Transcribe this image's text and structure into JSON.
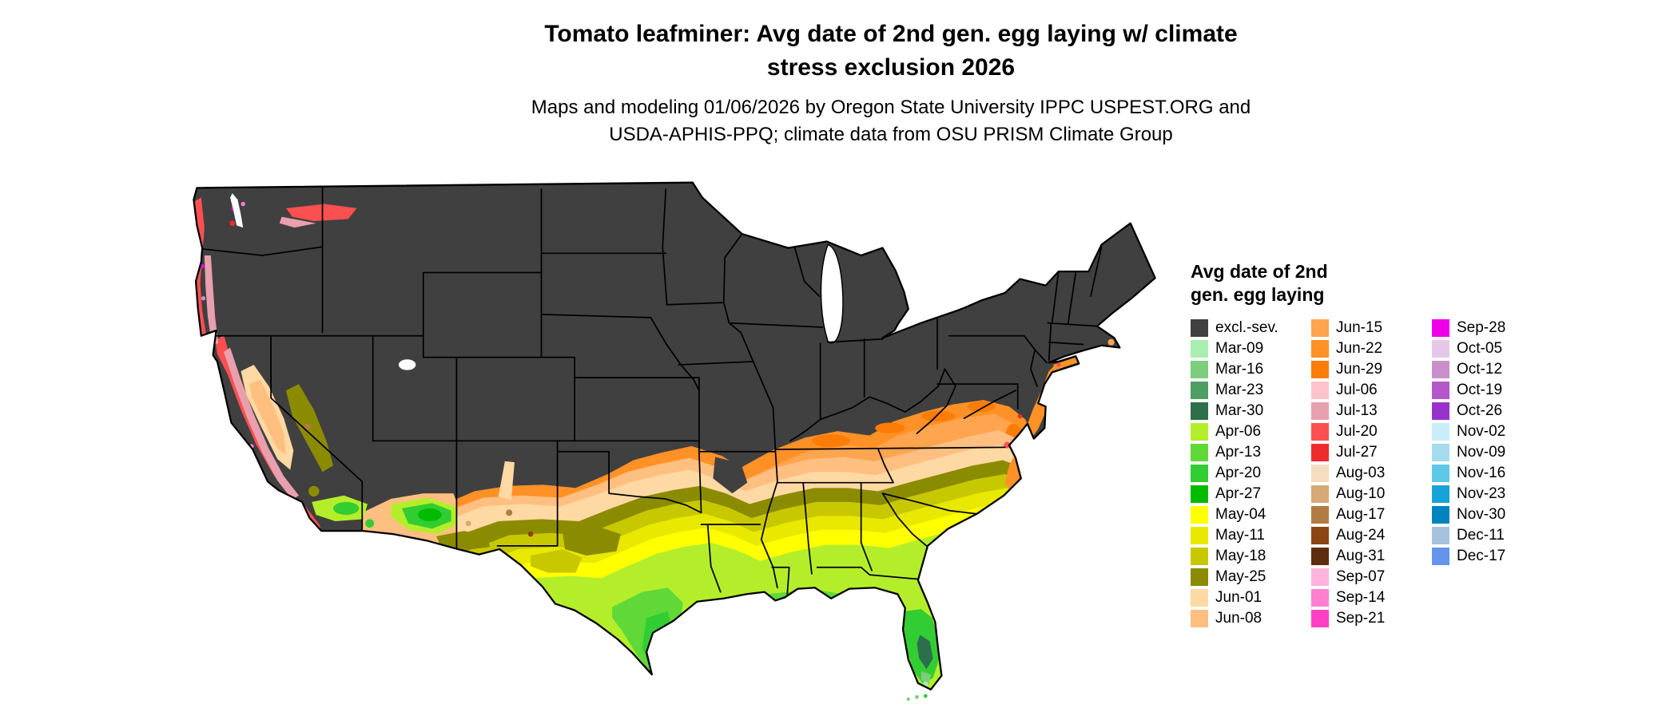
{
  "header": {
    "title_line1": "Tomato leafminer: Avg date of 2nd gen. egg laying w/ climate",
    "title_line2": "stress exclusion 2026",
    "subtitle_line1": "Maps and modeling 01/06/2026 by Oregon State University IPPC USPEST.ORG and",
    "subtitle_line2": "USDA-APHIS-PPQ; climate data from OSU PRISM Climate Group"
  },
  "legend": {
    "title_line1": "Avg date of 2nd",
    "title_line2": "gen. egg laying",
    "columns": [
      [
        {
          "label": "excl.-sev.",
          "key": "excl-sev"
        },
        {
          "label": "Mar-09",
          "key": "Mar-09"
        },
        {
          "label": "Mar-16",
          "key": "Mar-16"
        },
        {
          "label": "Mar-23",
          "key": "Mar-23"
        },
        {
          "label": "Mar-30",
          "key": "Mar-30"
        },
        {
          "label": "Apr-06",
          "key": "Apr-06"
        },
        {
          "label": "Apr-13",
          "key": "Apr-13"
        },
        {
          "label": "Apr-20",
          "key": "Apr-20"
        },
        {
          "label": "Apr-27",
          "key": "Apr-27"
        },
        {
          "label": "May-04",
          "key": "May-04"
        },
        {
          "label": "May-11",
          "key": "May-11"
        },
        {
          "label": "May-18",
          "key": "May-18"
        },
        {
          "label": "May-25",
          "key": "May-25"
        },
        {
          "label": "Jun-01",
          "key": "Jun-01"
        },
        {
          "label": "Jun-08",
          "key": "Jun-08"
        }
      ],
      [
        {
          "label": "Jun-15",
          "key": "Jun-15"
        },
        {
          "label": "Jun-22",
          "key": "Jun-22"
        },
        {
          "label": "Jun-29",
          "key": "Jun-29"
        },
        {
          "label": "Jul-06",
          "key": "Jul-06"
        },
        {
          "label": "Jul-13",
          "key": "Jul-13"
        },
        {
          "label": "Jul-20",
          "key": "Jul-20"
        },
        {
          "label": "Jul-27",
          "key": "Jul-27"
        },
        {
          "label": "Aug-03",
          "key": "Aug-03"
        },
        {
          "label": "Aug-10",
          "key": "Aug-10"
        },
        {
          "label": "Aug-17",
          "key": "Aug-17"
        },
        {
          "label": "Aug-24",
          "key": "Aug-24"
        },
        {
          "label": "Aug-31",
          "key": "Aug-31"
        },
        {
          "label": "Sep-07",
          "key": "Sep-07"
        },
        {
          "label": "Sep-14",
          "key": "Sep-14"
        },
        {
          "label": "Sep-21",
          "key": "Sep-21"
        }
      ],
      [
        {
          "label": "Sep-28",
          "key": "Sep-28"
        },
        {
          "label": "Oct-05",
          "key": "Oct-05"
        },
        {
          "label": "Oct-12",
          "key": "Oct-12"
        },
        {
          "label": "Oct-19",
          "key": "Oct-19"
        },
        {
          "label": "Oct-26",
          "key": "Oct-26"
        },
        {
          "label": "Nov-02",
          "key": "Nov-02"
        },
        {
          "label": "Nov-09",
          "key": "Nov-09"
        },
        {
          "label": "Nov-16",
          "key": "Nov-16"
        },
        {
          "label": "Nov-23",
          "key": "Nov-23"
        },
        {
          "label": "Nov-30",
          "key": "Nov-30"
        },
        {
          "label": "Dec-11",
          "key": "Dec-11"
        },
        {
          "label": "Dec-17",
          "key": "Dec-17"
        }
      ]
    ]
  },
  "palette": {
    "excl-sev": "#404040",
    "Mar-09": "#a8eeb0",
    "Mar-16": "#7ccd7c",
    "Mar-23": "#4f9e63",
    "Mar-30": "#2e6f4b",
    "Apr-06": "#b4ee2a",
    "Apr-13": "#5fd838",
    "Apr-20": "#32cd32",
    "Apr-27": "#00bb00",
    "May-04": "#ffff00",
    "May-11": "#e8e800",
    "May-18": "#c8c800",
    "May-25": "#8b8b00",
    "Jun-01": "#ffd9a3",
    "Jun-08": "#ffbf80",
    "Jun-15": "#ffa54f",
    "Jun-22": "#ff9126",
    "Jun-29": "#fb7d07",
    "Jul-06": "#ffc3cd",
    "Jul-13": "#e9a0ae",
    "Jul-20": "#fc5050",
    "Jul-27": "#ee2c2c",
    "Aug-03": "#f6dcc1",
    "Aug-10": "#d6a977",
    "Aug-17": "#b27c44",
    "Aug-24": "#8b4513",
    "Aug-31": "#5e2c0e",
    "Sep-07": "#ffb3dd",
    "Sep-14": "#ff7fd0",
    "Sep-21": "#ff3fc3",
    "Sep-28": "#f000e8",
    "Oct-05": "#e7c7e7",
    "Oct-12": "#cb8fcb",
    "Oct-19": "#b457c9",
    "Oct-26": "#9932cc",
    "Nov-02": "#c9eef8",
    "Nov-09": "#a5dcf0",
    "Nov-16": "#5fc8e6",
    "Nov-23": "#17a3d8",
    "Nov-30": "#0083bf",
    "Dec-11": "#a6c2de",
    "Dec-17": "#6494ec"
  },
  "map": {
    "background": "#ffffff",
    "border_color": "#000000"
  }
}
